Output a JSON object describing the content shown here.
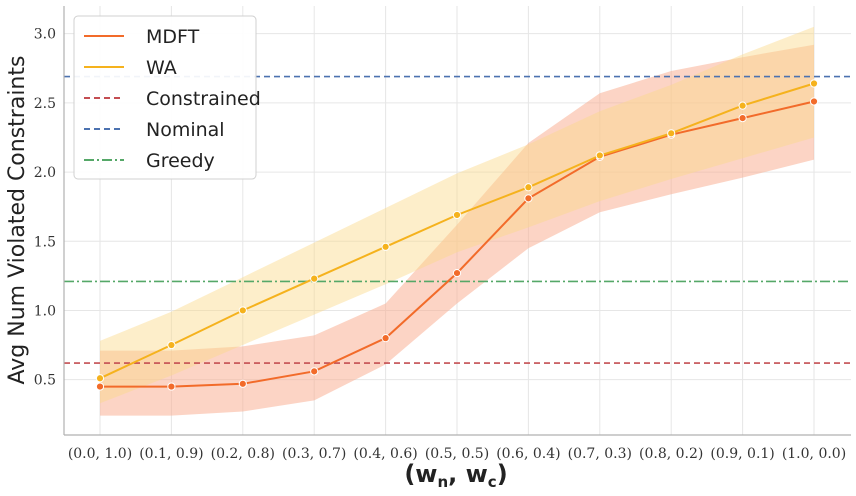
{
  "chart_data": {
    "type": "line",
    "title": "",
    "xlabel": "(w",
    "xlabel_sub1": "n",
    "xlabel_mid": ", w",
    "xlabel_sub2": "c",
    "xlabel_end": ")",
    "ylabel": "Avg Num Violated Constraints",
    "categories": [
      "(0.0, 1.0)",
      "(0.1, 0.9)",
      "(0.2, 0.8)",
      "(0.3, 0.7)",
      "(0.4, 0.6)",
      "(0.5, 0.5)",
      "(0.6, 0.4)",
      "(0.7, 0.3)",
      "(0.8, 0.2)",
      "(0.9, 0.1)",
      "(1.0, 0.0)"
    ],
    "ylim": [
      0.1,
      3.2
    ],
    "yticks": [
      "0.5",
      "1.0",
      "1.5",
      "2.0",
      "2.5",
      "3.0"
    ],
    "ytick_values": [
      0.5,
      1.0,
      1.5,
      2.0,
      2.5,
      3.0
    ],
    "grid": true,
    "legend_position": "top-left",
    "series": [
      {
        "name": "MDFT",
        "color": "#f26b2a",
        "band_color": "#f9a98c",
        "values": [
          0.45,
          0.45,
          0.47,
          0.56,
          0.8,
          1.27,
          1.81,
          2.11,
          2.27,
          2.39,
          2.51
        ],
        "lower": [
          0.24,
          0.24,
          0.27,
          0.35,
          0.61,
          1.05,
          1.45,
          1.71,
          1.84,
          1.96,
          2.09
        ],
        "upper": [
          0.71,
          0.71,
          0.74,
          0.82,
          1.05,
          1.62,
          2.21,
          2.57,
          2.73,
          2.83,
          2.92
        ]
      },
      {
        "name": "WA",
        "color": "#f5b21d",
        "band_color": "#fbd98a",
        "values": [
          0.51,
          0.75,
          1.0,
          1.23,
          1.46,
          1.69,
          1.89,
          2.12,
          2.28,
          2.48,
          2.64
        ],
        "lower": [
          0.33,
          0.53,
          0.75,
          0.97,
          1.19,
          1.42,
          1.6,
          1.79,
          1.95,
          2.1,
          2.25
        ],
        "upper": [
          0.78,
          0.99,
          1.24,
          1.49,
          1.74,
          1.99,
          2.2,
          2.44,
          2.63,
          2.85,
          3.05
        ]
      }
    ],
    "reference_lines": [
      {
        "name": "Constrained",
        "value": 0.62,
        "color": "#c44e52",
        "style": "dashed"
      },
      {
        "name": "Nominal",
        "value": 2.69,
        "color": "#4c72b0",
        "style": "dashed"
      },
      {
        "name": "Greedy",
        "value": 1.21,
        "color": "#55a868",
        "style": "dashdot"
      }
    ]
  }
}
